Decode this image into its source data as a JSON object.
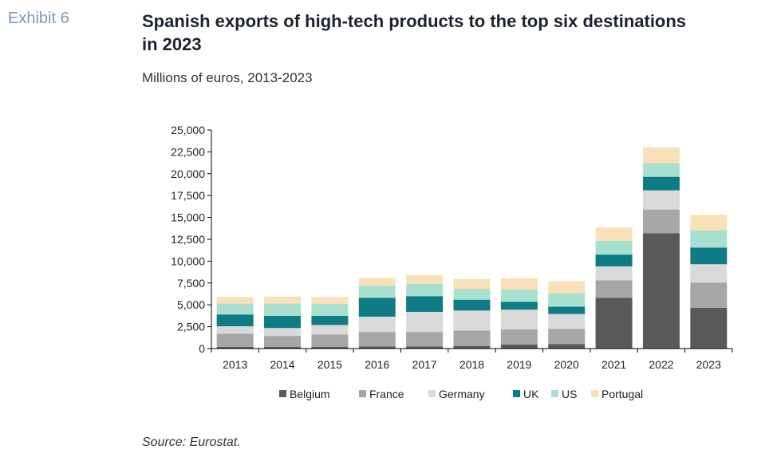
{
  "exhibit": "Exhibit 6",
  "title": "Spanish exports of high-tech products to the top six destinations in 2023",
  "subtitle": "Millions of euros, 2013-2023",
  "source": "Source: Eurostat.",
  "chart_data": {
    "type": "bar",
    "stacked": true,
    "categories": [
      "2013",
      "2014",
      "2015",
      "2016",
      "2017",
      "2018",
      "2019",
      "2020",
      "2021",
      "2022",
      "2023"
    ],
    "ylim": [
      0,
      25000
    ],
    "yticks": [
      "0",
      "2,500",
      "5,000",
      "7,500",
      "10,000",
      "12,500",
      "15,000",
      "17,500",
      "20,000",
      "22,500",
      "25,000"
    ],
    "ytick_values": [
      0,
      2500,
      5000,
      7500,
      10000,
      12500,
      15000,
      17500,
      20000,
      22500,
      25000
    ],
    "legend_position": "bottom",
    "grid": false,
    "series": [
      {
        "name": "Belgium",
        "color": "#595959",
        "values": [
          200,
          200,
          200,
          250,
          250,
          300,
          450,
          500,
          5800,
          13200,
          4650
        ]
      },
      {
        "name": "France",
        "color": "#a6a6a6",
        "values": [
          1500,
          1250,
          1400,
          1650,
          1650,
          1750,
          1750,
          1750,
          2000,
          2700,
          2900
        ]
      },
      {
        "name": "Germany",
        "color": "#d9d9d9",
        "values": [
          850,
          900,
          1100,
          1750,
          2300,
          2300,
          2250,
          1700,
          1600,
          2200,
          2100
        ]
      },
      {
        "name": "UK",
        "color": "#0f7b84",
        "values": [
          1350,
          1400,
          1050,
          2150,
          1800,
          1250,
          900,
          850,
          1350,
          1550,
          1900
        ]
      },
      {
        "name": "US",
        "color": "#a8e0cf",
        "values": [
          1250,
          1400,
          1350,
          1400,
          1400,
          1200,
          1400,
          1500,
          1600,
          1550,
          1950
        ]
      },
      {
        "name": "Portugal",
        "color": "#f8e0b8",
        "values": [
          750,
          800,
          800,
          900,
          1000,
          1150,
          1300,
          1400,
          1500,
          1800,
          1800
        ]
      }
    ]
  }
}
